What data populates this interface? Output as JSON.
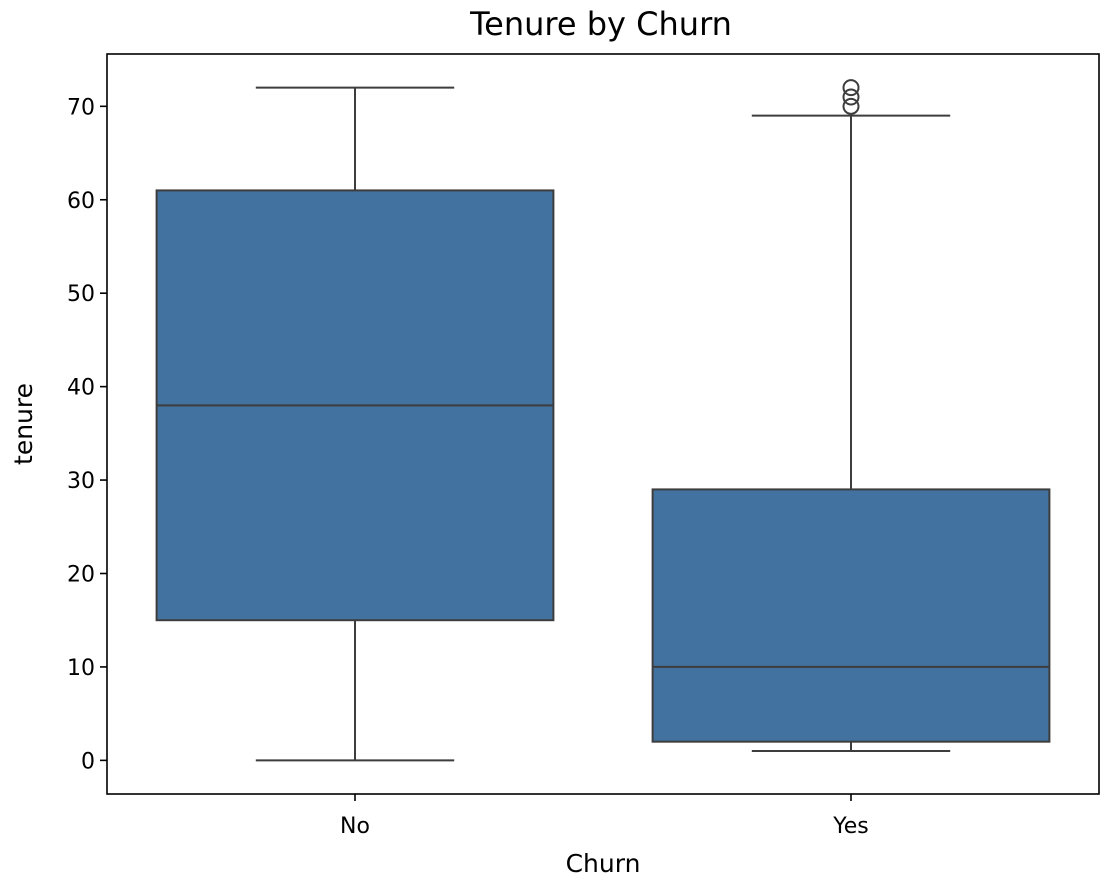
{
  "chart_data": {
    "type": "box",
    "title": "Tenure by Churn",
    "xlabel": "Churn",
    "ylabel": "tenure",
    "categories": [
      "No",
      "Yes"
    ],
    "ylim": [
      -3.6,
      75.6
    ],
    "yticks": [
      0,
      10,
      20,
      30,
      40,
      50,
      60,
      70
    ],
    "box_color": "#4272a0",
    "line_color": "#3d3d3d",
    "grid": false,
    "boxes": [
      {
        "category": "No",
        "whisker_low": 0,
        "q1": 15,
        "median": 38,
        "q3": 61,
        "whisker_high": 72,
        "outliers": []
      },
      {
        "category": "Yes",
        "whisker_low": 1,
        "q1": 2,
        "median": 10,
        "q3": 29,
        "whisker_high": 69,
        "outliers": [
          70,
          71,
          72
        ]
      }
    ]
  }
}
